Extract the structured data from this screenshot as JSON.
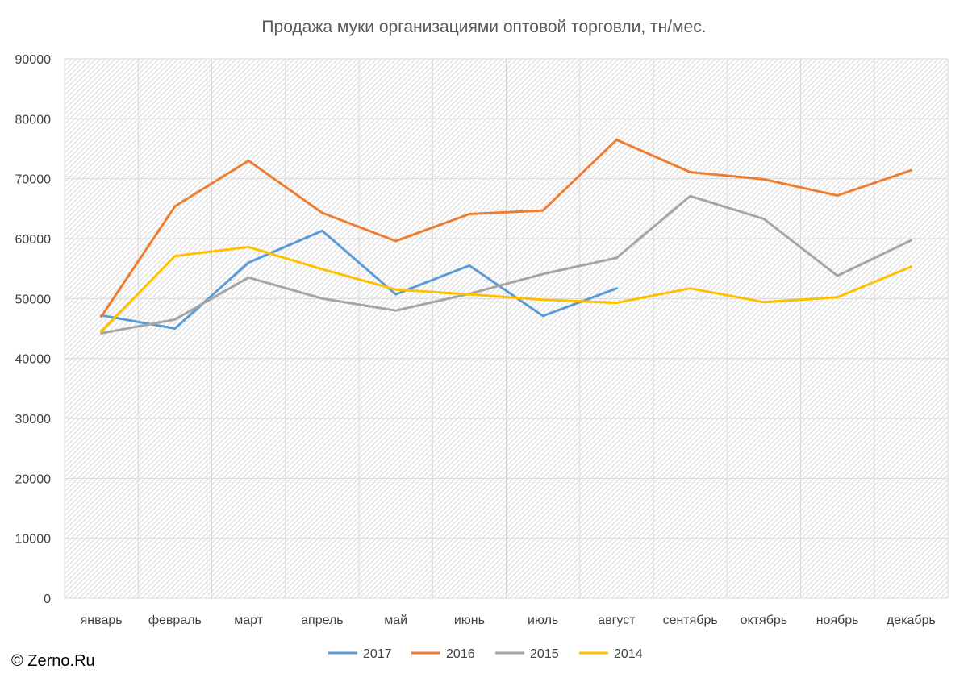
{
  "chart_data": {
    "type": "line",
    "title": "Продажа муки организациями оптовой торговли, тн/мес.",
    "xlabel": "",
    "ylabel": "",
    "categories": [
      "январь",
      "февраль",
      "март",
      "апрель",
      "май",
      "июнь",
      "июль",
      "август",
      "сентябрь",
      "октябрь",
      "ноябрь",
      "декабрь"
    ],
    "ylim": [
      0,
      90000
    ],
    "yticks": [
      "0",
      "10000",
      "20000",
      "30000",
      "40000",
      "50000",
      "60000",
      "70000",
      "80000",
      "90000"
    ],
    "grid": true,
    "legend_position": "bottom",
    "series": [
      {
        "name": "2017",
        "color": "#5b9bd5",
        "values": [
          47200,
          45000,
          56000,
          61300,
          50700,
          55500,
          47100,
          51700,
          null,
          null,
          null,
          null
        ]
      },
      {
        "name": "2016",
        "color": "#ed7d31",
        "values": [
          47000,
          65400,
          73000,
          64300,
          59600,
          64100,
          64700,
          76500,
          71100,
          69900,
          67200,
          71400
        ]
      },
      {
        "name": "2015",
        "color": "#a5a5a5",
        "values": [
          44200,
          46500,
          53500,
          50000,
          48000,
          50800,
          54100,
          56800,
          67100,
          63300,
          53800,
          59700
        ]
      },
      {
        "name": "2014",
        "color": "#ffc000",
        "values": [
          44500,
          57100,
          58600,
          54900,
          51500,
          50700,
          49800,
          49300,
          51700,
          49400,
          50200,
          55300
        ]
      }
    ]
  },
  "copyright": "© Zerno.Ru"
}
